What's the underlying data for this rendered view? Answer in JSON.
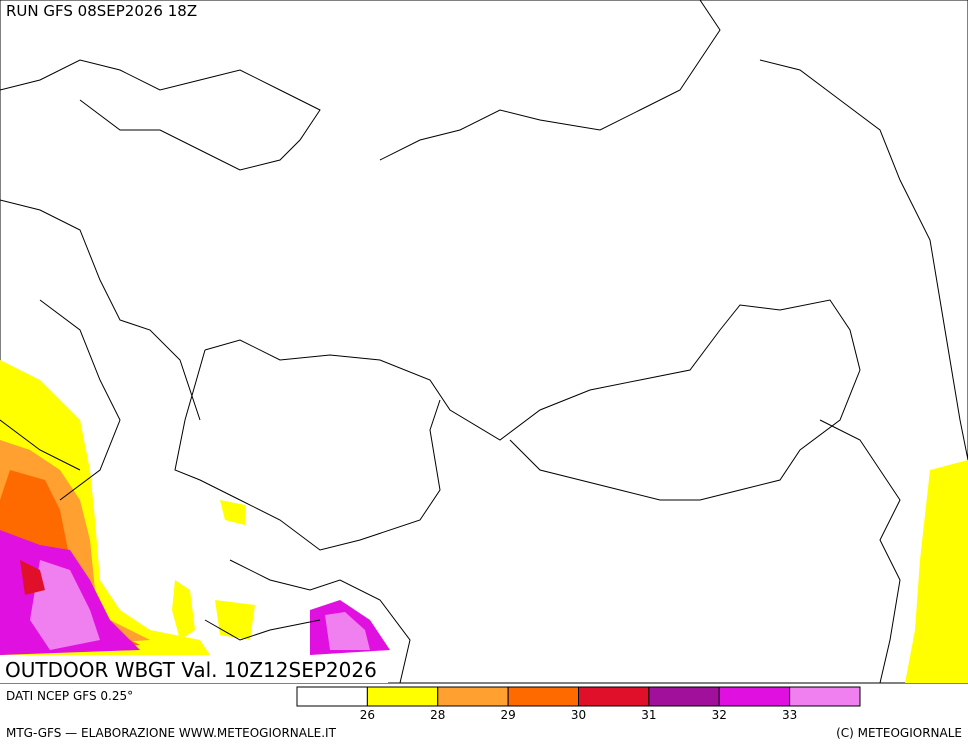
{
  "header": {
    "run": "RUN GFS 08SEP2026 18Z"
  },
  "title": "OUTDOOR WBGT Val. 10Z12SEP2026",
  "footer": {
    "source": "DATI NCEP GFS 0.25°",
    "credit": "MTG-GFS — ELABORAZIONE WWW.METEOGIORNALE.IT",
    "copyright": "(C) METEOGIORNALE"
  },
  "legend": {
    "colors": [
      "#ffffff",
      "#ffff00",
      "#ffa030",
      "#ff6a00",
      "#e0102a",
      "#a0109a",
      "#e010e0",
      "#f080f0"
    ],
    "ticks": [
      26,
      28,
      29,
      30,
      31,
      32,
      33
    ]
  }
}
